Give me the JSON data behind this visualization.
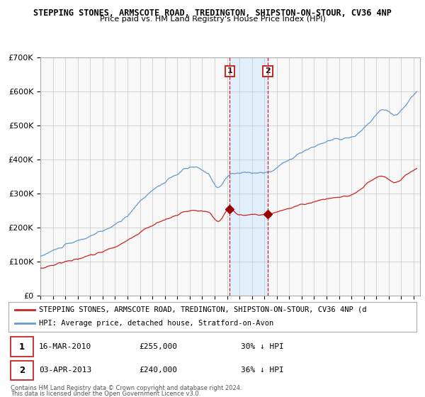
{
  "title": "STEPPING STONES, ARMSCOTE ROAD, TREDINGTON, SHIPSTON-ON-STOUR, CV36 4NP",
  "subtitle": "Price paid vs. HM Land Registry's House Price Index (HPI)",
  "hpi_color": "#6699cc",
  "price_color": "#cc2222",
  "background_color": "#ffffff",
  "plot_bg_color": "#f8f8f8",
  "grid_color": "#cccccc",
  "ylim": [
    0,
    700000
  ],
  "yticks": [
    0,
    100000,
    200000,
    300000,
    400000,
    500000,
    600000,
    700000
  ],
  "ytick_labels": [
    "£0",
    "£100K",
    "£200K",
    "£300K",
    "£400K",
    "£500K",
    "£600K",
    "£700K"
  ],
  "xlim_start": 1995.0,
  "xlim_end": 2025.5,
  "date1_x": 2010.21,
  "date2_x": 2013.27,
  "date1_label": "1",
  "date2_label": "2",
  "sale1_y": 255000,
  "sale2_y": 240000,
  "sale1_date": "16-MAR-2010",
  "sale1_price": "£255,000",
  "sale1_hpi": "30% ↓ HPI",
  "sale2_date": "03-APR-2013",
  "sale2_price": "£240,000",
  "sale2_hpi": "36% ↓ HPI",
  "legend_line1": "STEPPING STONES, ARMSCOTE ROAD, TREDINGTON, SHIPSTON-ON-STOUR, CV36 4NP (d",
  "legend_line2": "HPI: Average price, detached house, Stratford-on-Avon",
  "footer1": "Contains HM Land Registry data © Crown copyright and database right 2024.",
  "footer2": "This data is licensed under the Open Government Licence v3.0.",
  "shade_color": "#ddeeff",
  "vline_color": "#cc2222",
  "hpi_anchors_x": [
    1995.0,
    1997.0,
    1999.0,
    2001.5,
    2003.5,
    2005.5,
    2007.2,
    2008.5,
    2009.3,
    2010.2,
    2011.5,
    2013.25,
    2014.5,
    2016.5,
    2018.5,
    2020.0,
    2021.5,
    2022.5,
    2023.5,
    2024.5,
    2025.25
  ],
  "hpi_anchors_y": [
    115000,
    148000,
    175000,
    220000,
    295000,
    345000,
    378000,
    358000,
    318000,
    355000,
    362000,
    362000,
    390000,
    430000,
    458000,
    465000,
    510000,
    548000,
    530000,
    568000,
    600000
  ],
  "price_anchors_x": [
    1995.0,
    1997.0,
    1999.0,
    2001.5,
    2003.5,
    2005.5,
    2007.2,
    2008.5,
    2009.3,
    2010.21,
    2011.0,
    2012.5,
    2013.27,
    2014.5,
    2016.5,
    2018.5,
    2020.0,
    2021.5,
    2022.5,
    2023.5,
    2024.5,
    2025.25
  ],
  "price_anchors_y": [
    80000,
    100000,
    118000,
    152000,
    198000,
    230000,
    250000,
    245000,
    218000,
    255000,
    238000,
    238000,
    240000,
    252000,
    272000,
    288000,
    295000,
    335000,
    352000,
    332000,
    358000,
    375000
  ]
}
